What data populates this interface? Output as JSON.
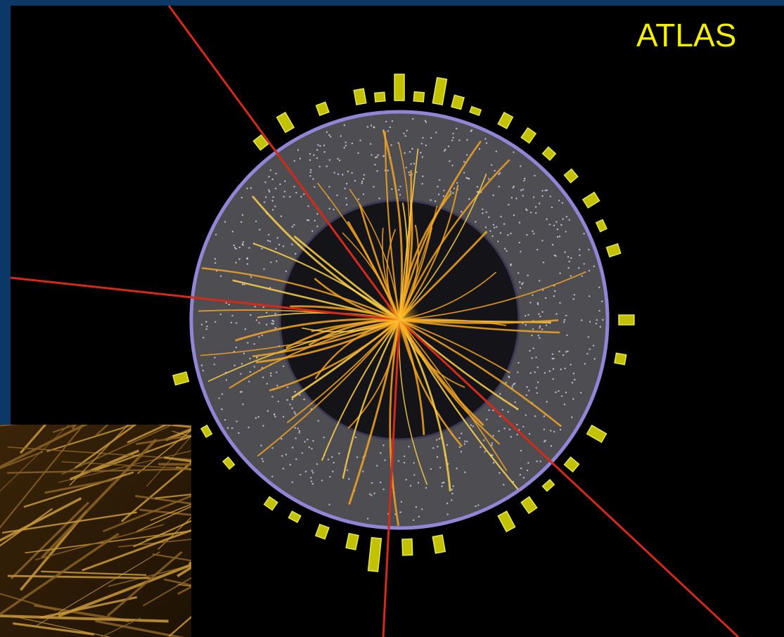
{
  "title": "ATLAS"
}
